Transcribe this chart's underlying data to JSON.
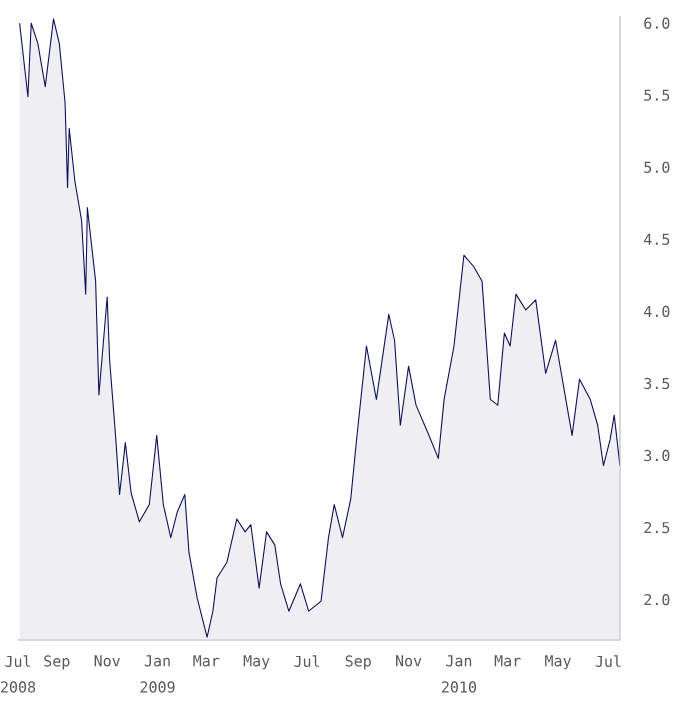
{
  "chart_data": {
    "type": "area",
    "x": [
      "2008-07-18",
      "2008-07-28",
      "2008-08-01",
      "2008-08-09",
      "2008-08-18",
      "2008-08-28",
      "2008-09-04",
      "2008-09-11",
      "2008-09-14",
      "2008-09-16",
      "2008-09-23",
      "2008-10-01",
      "2008-10-06",
      "2008-10-08",
      "2008-10-18",
      "2008-10-22",
      "2008-11-01",
      "2008-11-04",
      "2008-11-11",
      "2008-11-16",
      "2008-11-23",
      "2008-11-30",
      "2008-12-10",
      "2008-12-22",
      "2008-12-31",
      "2009-01-08",
      "2009-01-17",
      "2009-01-25",
      "2009-02-03",
      "2009-02-08",
      "2009-02-18",
      "2009-03-02",
      "2009-03-09",
      "2009-03-14",
      "2009-03-26",
      "2009-04-07",
      "2009-04-17",
      "2009-04-24",
      "2009-05-04",
      "2009-05-13",
      "2009-05-23",
      "2009-05-30",
      "2009-06-09",
      "2009-06-23",
      "2009-07-03",
      "2009-07-18",
      "2009-07-27",
      "2009-08-03",
      "2009-08-13",
      "2009-08-23",
      "2009-08-30",
      "2009-09-11",
      "2009-09-23",
      "2009-10-08",
      "2009-10-15",
      "2009-10-22",
      "2009-11-01",
      "2009-11-10",
      "2009-11-25",
      "2009-12-07",
      "2009-12-14",
      "2009-12-26",
      "2010-01-07",
      "2010-01-19",
      "2010-01-29",
      "2010-02-08",
      "2010-02-17",
      "2010-02-25",
      "2010-03-04",
      "2010-03-11",
      "2010-03-23",
      "2010-04-04",
      "2010-04-16",
      "2010-04-28",
      "2010-05-18",
      "2010-05-27",
      "2010-06-09",
      "2010-06-18",
      "2010-06-25",
      "2010-07-03",
      "2010-07-08",
      "2010-07-15"
    ],
    "series": [
      {
        "color": "#10105a",
        "values": [
          6.0,
          5.49,
          6.0,
          5.86,
          5.56,
          6.03,
          5.86,
          5.45,
          4.86,
          5.27,
          4.9,
          4.63,
          4.12,
          4.72,
          4.21,
          3.42,
          4.1,
          3.66,
          3.15,
          2.73,
          3.09,
          2.74,
          2.54,
          2.66,
          3.14,
          2.66,
          2.43,
          2.61,
          2.73,
          2.33,
          2.01,
          1.74,
          1.92,
          2.15,
          2.26,
          2.56,
          2.47,
          2.52,
          2.08,
          2.47,
          2.38,
          2.11,
          1.92,
          2.11,
          1.92,
          1.99,
          2.43,
          2.66,
          2.43,
          2.7,
          3.11,
          3.76,
          3.39,
          3.98,
          3.8,
          3.21,
          3.62,
          3.35,
          3.15,
          2.98,
          3.39,
          3.76,
          4.39,
          4.31,
          4.21,
          3.39,
          3.35,
          3.85,
          3.76,
          4.12,
          4.01,
          4.08,
          3.57,
          3.8,
          3.14,
          3.53,
          3.39,
          3.21,
          2.93,
          3.11,
          3.28,
          2.93
        ]
      }
    ],
    "xlim": [
      "2008-07-16",
      "2010-07-15"
    ],
    "xticks": [
      {
        "value": "2008-07-16",
        "label": "Jul"
      },
      {
        "value": "2008-09-01",
        "label": "Sep"
      },
      {
        "value": "2008-11-01",
        "label": "Nov"
      },
      {
        "value": "2009-01-01",
        "label": "Jan"
      },
      {
        "value": "2009-03-01",
        "label": "Mar"
      },
      {
        "value": "2009-05-01",
        "label": "May"
      },
      {
        "value": "2009-07-01",
        "label": "Jul"
      },
      {
        "value": "2009-09-01",
        "label": "Sep"
      },
      {
        "value": "2009-11-01",
        "label": "Nov"
      },
      {
        "value": "2010-01-01",
        "label": "Jan"
      },
      {
        "value": "2010-03-01",
        "label": "Mar"
      },
      {
        "value": "2010-05-01",
        "label": "May"
      },
      {
        "value": "2010-07-01",
        "label": "Jul"
      }
    ],
    "x2lim": [
      "2008-07-16",
      "2010-07-15"
    ],
    "x2ticks": [
      {
        "value": "2008-07-16",
        "label": "2008"
      },
      {
        "value": "2009-01-01",
        "label": "2009"
      },
      {
        "value": "2010-01-01",
        "label": "2010"
      }
    ],
    "ylim": [
      1.72,
      6.05
    ],
    "yticks": [
      {
        "value": 2.0,
        "label": "2.0"
      },
      {
        "value": 2.5,
        "label": "2.5"
      },
      {
        "value": 3.0,
        "label": "3.0"
      },
      {
        "value": 3.5,
        "label": "3.5"
      },
      {
        "value": 4.0,
        "label": "4.0"
      },
      {
        "value": 4.5,
        "label": "4.5"
      },
      {
        "value": 5.0,
        "label": "5.0"
      },
      {
        "value": 5.5,
        "label": "5.5"
      },
      {
        "value": 6.0,
        "label": "6.0"
      }
    ],
    "grid": false
  }
}
